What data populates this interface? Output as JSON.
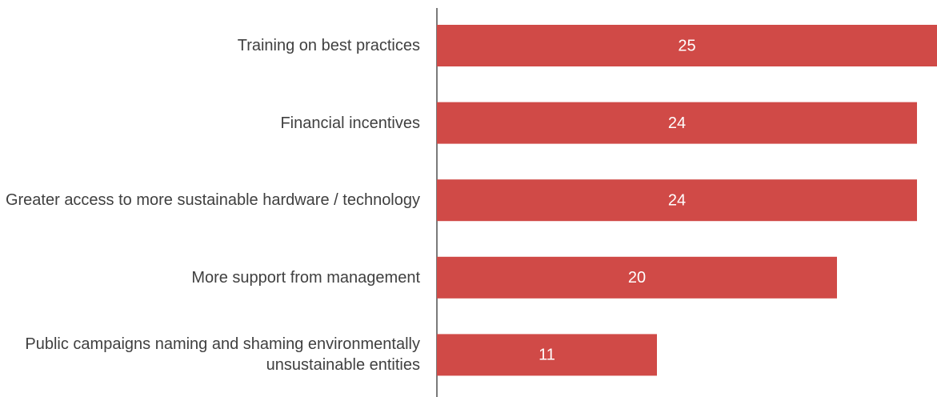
{
  "chart_data": {
    "type": "bar",
    "orientation": "horizontal",
    "categories": [
      "Training on best practices",
      "Financial incentives",
      "Greater access to more sustainable hardware / technology",
      "More support from management",
      "Public campaigns naming and shaming environmentally unsustainable entities"
    ],
    "values": [
      25,
      24,
      24,
      20,
      11
    ],
    "color": "#d04a47",
    "xlim": [
      0,
      25
    ]
  }
}
